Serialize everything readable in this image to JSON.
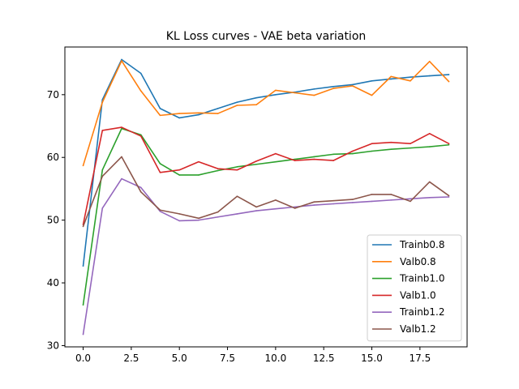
{
  "chart_data": {
    "type": "line",
    "title": "KL Loss curves - VAE beta variation",
    "xlabel": "",
    "ylabel": "",
    "xlim": [
      -0.95,
      19.95
    ],
    "ylim": [
      29.8,
      77.6
    ],
    "xticks": [
      0.0,
      2.5,
      5.0,
      7.5,
      10.0,
      12.5,
      15.0,
      17.5
    ],
    "xtick_labels": [
      "0.0",
      "2.5",
      "5.0",
      "7.5",
      "10.0",
      "12.5",
      "15.0",
      "17.5"
    ],
    "yticks": [
      30,
      40,
      50,
      60,
      70
    ],
    "ytick_labels": [
      "30",
      "40",
      "50",
      "60",
      "70"
    ],
    "grid": false,
    "legend_position": "lower-right",
    "x": [
      0,
      1,
      2,
      3,
      4,
      5,
      6,
      7,
      8,
      9,
      10,
      11,
      12,
      13,
      14,
      15,
      16,
      17,
      18,
      19
    ],
    "series": [
      {
        "name": "Trainb0.8",
        "color": "#1f77b4",
        "values": [
          42.7,
          69.2,
          75.6,
          73.4,
          67.8,
          66.3,
          66.8,
          67.8,
          68.8,
          69.5,
          70.0,
          70.4,
          70.9,
          71.3,
          71.6,
          72.2,
          72.5,
          72.8,
          73.0,
          73.2
        ]
      },
      {
        "name": "Valb0.8",
        "color": "#ff7f0e",
        "values": [
          58.7,
          68.8,
          75.4,
          70.6,
          66.7,
          67.0,
          67.1,
          67.0,
          68.3,
          68.4,
          70.7,
          70.3,
          69.9,
          71.0,
          71.4,
          69.9,
          72.9,
          72.2,
          75.3,
          72.1
        ]
      },
      {
        "name": "Trainb1.0",
        "color": "#2ca02c",
        "values": [
          36.5,
          58.0,
          64.6,
          63.6,
          59.0,
          57.2,
          57.2,
          57.9,
          58.5,
          58.9,
          59.3,
          59.7,
          60.1,
          60.5,
          60.6,
          61.0,
          61.3,
          61.5,
          61.7,
          62.0
        ]
      },
      {
        "name": "Valb1.0",
        "color": "#d62728",
        "values": [
          49.3,
          64.3,
          64.8,
          63.4,
          57.6,
          58.0,
          59.3,
          58.2,
          58.0,
          59.4,
          60.6,
          59.5,
          59.7,
          59.5,
          61.0,
          62.2,
          62.4,
          62.2,
          63.8,
          62.2
        ]
      },
      {
        "name": "Trainb1.2",
        "color": "#9467bd",
        "values": [
          31.8,
          51.9,
          56.6,
          55.2,
          51.4,
          49.9,
          50.0,
          50.5,
          51.0,
          51.5,
          51.8,
          52.1,
          52.4,
          52.6,
          52.8,
          53.0,
          53.2,
          53.4,
          53.6,
          53.7
        ]
      },
      {
        "name": "Valb1.2",
        "color": "#8c564b",
        "values": [
          49.0,
          57.0,
          60.1,
          54.5,
          51.6,
          51.0,
          50.3,
          51.3,
          53.8,
          52.1,
          53.2,
          51.9,
          52.9,
          53.1,
          53.3,
          54.1,
          54.1,
          53.0,
          56.1,
          53.9
        ]
      }
    ]
  }
}
